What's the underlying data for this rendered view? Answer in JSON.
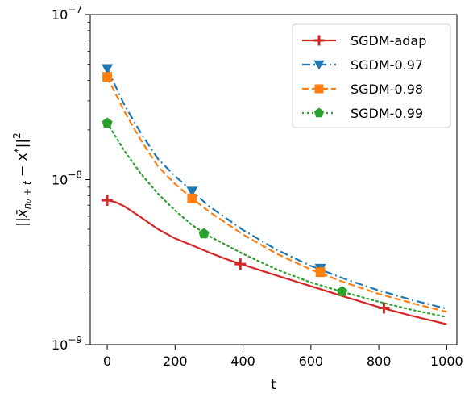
{
  "chart_data": {
    "type": "line",
    "xlabel": "t",
    "ylabel": "||x̄_{n₀+t} − x*||²",
    "ylabel_parts": {
      "pre": "||",
      "x": "x̄",
      "sub": "n₀ + t",
      "mid": " − x",
      "star": "*",
      "post": "||",
      "sq": "2"
    },
    "xlim": [
      -50,
      1030
    ],
    "ylim": [
      1e-09,
      1e-07
    ],
    "yscale": "log",
    "xticks": [
      0,
      200,
      400,
      600,
      800,
      1000
    ],
    "xtick_labels": [
      "0",
      "200",
      "400",
      "600",
      "800",
      "1000"
    ],
    "yticks": [
      {
        "value": 1e-09,
        "base": "10",
        "exp": "−9"
      },
      {
        "value": 1e-08,
        "base": "10",
        "exp": "−8"
      },
      {
        "value": 1e-07,
        "base": "10",
        "exp": "−7"
      }
    ],
    "grid": false,
    "legend_position": "top-right",
    "series": [
      {
        "name": "SGDM-adap",
        "color": "#d62728",
        "linestyle": "solid",
        "marker": "plus",
        "x": [
          0,
          25,
          50,
          100,
          150,
          200,
          250,
          300,
          350,
          400,
          500,
          600,
          700,
          800,
          900,
          1000
        ],
        "y": [
          7.5e-09,
          7.3e-09,
          6.9e-09,
          5.9e-09,
          5e-09,
          4.4e-09,
          4e-09,
          3.62e-09,
          3.3e-09,
          3.05e-09,
          2.62e-09,
          2.26e-09,
          1.95e-09,
          1.69e-09,
          1.49e-09,
          1.33e-09
        ],
        "marker_x": [
          0,
          392,
          815
        ],
        "marker_y": [
          7.5e-09,
          3.08e-09,
          1.67e-09
        ]
      },
      {
        "name": "SGDM-0.97",
        "color": "#1f77b4",
        "linestyle": "dashdot",
        "marker": "triangle-down",
        "x": [
          0,
          50,
          100,
          150,
          200,
          250,
          300,
          400,
          500,
          600,
          700,
          800,
          900,
          1000
        ],
        "y": [
          4.7e-08,
          2.85e-08,
          1.9e-08,
          1.33e-08,
          1.05e-08,
          8.5e-09,
          6.9e-09,
          4.95e-09,
          3.75e-09,
          3e-09,
          2.5e-09,
          2.13e-09,
          1.86e-09,
          1.65e-09
        ],
        "marker_x": [
          0,
          250,
          628
        ],
        "marker_y": [
          4.7e-08,
          8.5e-09,
          2.9e-09
        ]
      },
      {
        "name": "SGDM-0.98",
        "color": "#ff7f0e",
        "linestyle": "dashed",
        "marker": "square",
        "x": [
          0,
          50,
          100,
          150,
          200,
          250,
          300,
          400,
          500,
          600,
          700,
          800,
          900,
          1000
        ],
        "y": [
          4.2e-08,
          2.6e-08,
          1.72e-08,
          1.2e-08,
          9.4e-09,
          7.7e-09,
          6.4e-09,
          4.65e-09,
          3.55e-09,
          2.85e-09,
          2.38e-09,
          2.03e-09,
          1.78e-09,
          1.58e-09
        ],
        "marker_x": [
          0,
          250,
          628
        ],
        "marker_y": [
          4.2e-08,
          7.7e-09,
          2.75e-09
        ]
      },
      {
        "name": "SGDM-0.99",
        "color": "#2ca02c",
        "linestyle": "dotted",
        "marker": "pentagon",
        "x": [
          0,
          50,
          100,
          150,
          200,
          250,
          300,
          400,
          500,
          600,
          700,
          800,
          900,
          1000
        ],
        "y": [
          2.2e-08,
          1.5e-08,
          1.08e-08,
          8.2e-09,
          6.5e-09,
          5.3e-09,
          4.55e-09,
          3.55e-09,
          2.85e-09,
          2.38e-09,
          2.07e-09,
          1.82e-09,
          1.62e-09,
          1.47e-09
        ],
        "marker_x": [
          0,
          285,
          692
        ],
        "marker_y": [
          2.2e-08,
          4.7e-09,
          2.1e-09
        ]
      }
    ]
  }
}
